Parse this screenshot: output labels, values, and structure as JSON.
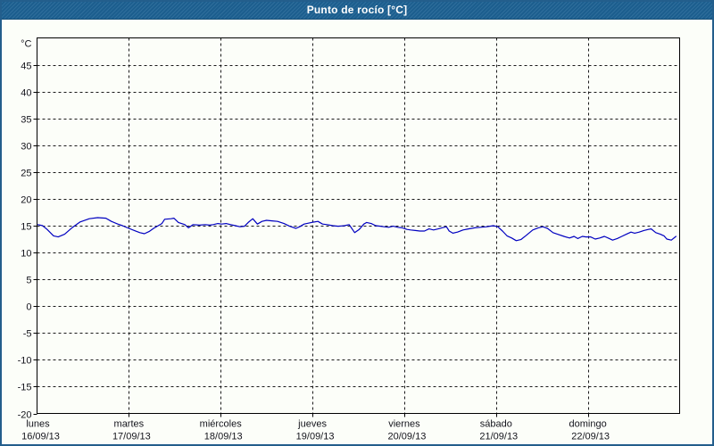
{
  "window": {
    "title": "Punto de rocío [°C]"
  },
  "colors": {
    "frame": "#235e8c",
    "titlebar_bg": "#1d6294",
    "title_text": "#ffffff",
    "plot_bg": "#fcfef9",
    "plot_border": "#000000",
    "grid": "#1a1a1a",
    "axis_text": "#14141c",
    "line": "#0000c0"
  },
  "chart_data": {
    "type": "line",
    "title": "Punto de rocío [°C]",
    "y_unit": "°C",
    "ylim": [
      -20,
      50
    ],
    "y_ticks": [
      45,
      40,
      35,
      30,
      25,
      20,
      15,
      10,
      5,
      0,
      -5,
      -10,
      -15,
      -20
    ],
    "grid": "dashed",
    "legend": "none",
    "x_days": [
      {
        "name": "lunes",
        "date": "16/09/13"
      },
      {
        "name": "martes",
        "date": "17/09/13"
      },
      {
        "name": "miércoles",
        "date": "18/09/13"
      },
      {
        "name": "jueves",
        "date": "19/09/13"
      },
      {
        "name": "viernes",
        "date": "20/09/13"
      },
      {
        "name": "sábado",
        "date": "21/09/13"
      },
      {
        "name": "domingo",
        "date": "22/09/13"
      }
    ],
    "xlim_days": [
      0,
      7
    ],
    "series": [
      {
        "name": "Punto de rocío",
        "color": "#0000c0",
        "points": [
          [
            0.01,
            15.2
          ],
          [
            0.06,
            15.0
          ],
          [
            0.11,
            14.3
          ],
          [
            0.18,
            13.1
          ],
          [
            0.23,
            12.9
          ],
          [
            0.3,
            13.4
          ],
          [
            0.38,
            14.6
          ],
          [
            0.47,
            15.7
          ],
          [
            0.57,
            16.3
          ],
          [
            0.66,
            16.5
          ],
          [
            0.75,
            16.4
          ],
          [
            0.81,
            15.8
          ],
          [
            0.88,
            15.3
          ],
          [
            0.93,
            15.0
          ],
          [
            1.0,
            14.5
          ],
          [
            1.06,
            14.1
          ],
          [
            1.12,
            13.7
          ],
          [
            1.17,
            13.5
          ],
          [
            1.22,
            13.9
          ],
          [
            1.27,
            14.5
          ],
          [
            1.32,
            15.0
          ],
          [
            1.36,
            15.4
          ],
          [
            1.39,
            16.2
          ],
          [
            1.46,
            16.3
          ],
          [
            1.49,
            16.4
          ],
          [
            1.54,
            15.6
          ],
          [
            1.61,
            15.2
          ],
          [
            1.65,
            14.6
          ],
          [
            1.7,
            15.2
          ],
          [
            1.77,
            15.1
          ],
          [
            1.83,
            15.2
          ],
          [
            1.88,
            15.1
          ],
          [
            1.92,
            15.2
          ],
          [
            1.97,
            15.4
          ],
          [
            2.01,
            15.3
          ],
          [
            2.06,
            15.4
          ],
          [
            2.11,
            15.2
          ],
          [
            2.16,
            15.0
          ],
          [
            2.21,
            14.8
          ],
          [
            2.26,
            14.9
          ],
          [
            2.3,
            15.6
          ],
          [
            2.35,
            16.3
          ],
          [
            2.4,
            15.3
          ],
          [
            2.45,
            15.8
          ],
          [
            2.5,
            16.0
          ],
          [
            2.56,
            15.9
          ],
          [
            2.62,
            15.8
          ],
          [
            2.69,
            15.4
          ],
          [
            2.75,
            14.9
          ],
          [
            2.82,
            14.5
          ],
          [
            2.86,
            14.8
          ],
          [
            2.91,
            15.3
          ],
          [
            2.99,
            15.6
          ],
          [
            3.06,
            15.8
          ],
          [
            3.11,
            15.3
          ],
          [
            3.16,
            15.2
          ],
          [
            3.22,
            15.0
          ],
          [
            3.28,
            14.9
          ],
          [
            3.35,
            15.0
          ],
          [
            3.4,
            15.2
          ],
          [
            3.46,
            13.7
          ],
          [
            3.51,
            14.3
          ],
          [
            3.56,
            15.3
          ],
          [
            3.59,
            15.6
          ],
          [
            3.64,
            15.4
          ],
          [
            3.69,
            15.0
          ],
          [
            3.74,
            14.9
          ],
          [
            3.78,
            14.8
          ],
          [
            3.83,
            14.7
          ],
          [
            3.88,
            14.9
          ],
          [
            3.93,
            14.7
          ],
          [
            3.98,
            14.6
          ],
          [
            4.03,
            14.3
          ],
          [
            4.07,
            14.2
          ],
          [
            4.12,
            14.1
          ],
          [
            4.17,
            14.0
          ],
          [
            4.22,
            14.0
          ],
          [
            4.27,
            14.4
          ],
          [
            4.32,
            14.2
          ],
          [
            4.37,
            14.4
          ],
          [
            4.41,
            14.6
          ],
          [
            4.46,
            14.8
          ],
          [
            4.49,
            14.0
          ],
          [
            4.53,
            13.6
          ],
          [
            4.58,
            13.8
          ],
          [
            4.64,
            14.2
          ],
          [
            4.7,
            14.4
          ],
          [
            4.77,
            14.6
          ],
          [
            4.83,
            14.7
          ],
          [
            4.9,
            14.8
          ],
          [
            4.97,
            15.0
          ],
          [
            5.02,
            14.8
          ],
          [
            5.07,
            14.0
          ],
          [
            5.12,
            13.1
          ],
          [
            5.17,
            12.7
          ],
          [
            5.22,
            12.2
          ],
          [
            5.27,
            12.4
          ],
          [
            5.33,
            13.2
          ],
          [
            5.4,
            14.2
          ],
          [
            5.46,
            14.6
          ],
          [
            5.51,
            14.8
          ],
          [
            5.56,
            14.5
          ],
          [
            5.62,
            13.7
          ],
          [
            5.67,
            13.4
          ],
          [
            5.74,
            13.0
          ],
          [
            5.8,
            12.7
          ],
          [
            5.85,
            13.0
          ],
          [
            5.89,
            12.6
          ],
          [
            5.94,
            13.0
          ],
          [
            5.98,
            12.9
          ],
          [
            6.03,
            12.9
          ],
          [
            6.08,
            12.5
          ],
          [
            6.13,
            12.7
          ],
          [
            6.18,
            13.0
          ],
          [
            6.22,
            12.7
          ],
          [
            6.27,
            12.3
          ],
          [
            6.32,
            12.6
          ],
          [
            6.37,
            13.0
          ],
          [
            6.42,
            13.4
          ],
          [
            6.47,
            13.8
          ],
          [
            6.51,
            13.6
          ],
          [
            6.56,
            13.8
          ],
          [
            6.61,
            14.1
          ],
          [
            6.66,
            14.3
          ],
          [
            6.69,
            14.4
          ],
          [
            6.74,
            13.7
          ],
          [
            6.79,
            13.4
          ],
          [
            6.83,
            13.1
          ],
          [
            6.86,
            12.5
          ],
          [
            6.91,
            12.3
          ],
          [
            6.96,
            13.0
          ]
        ]
      }
    ]
  }
}
